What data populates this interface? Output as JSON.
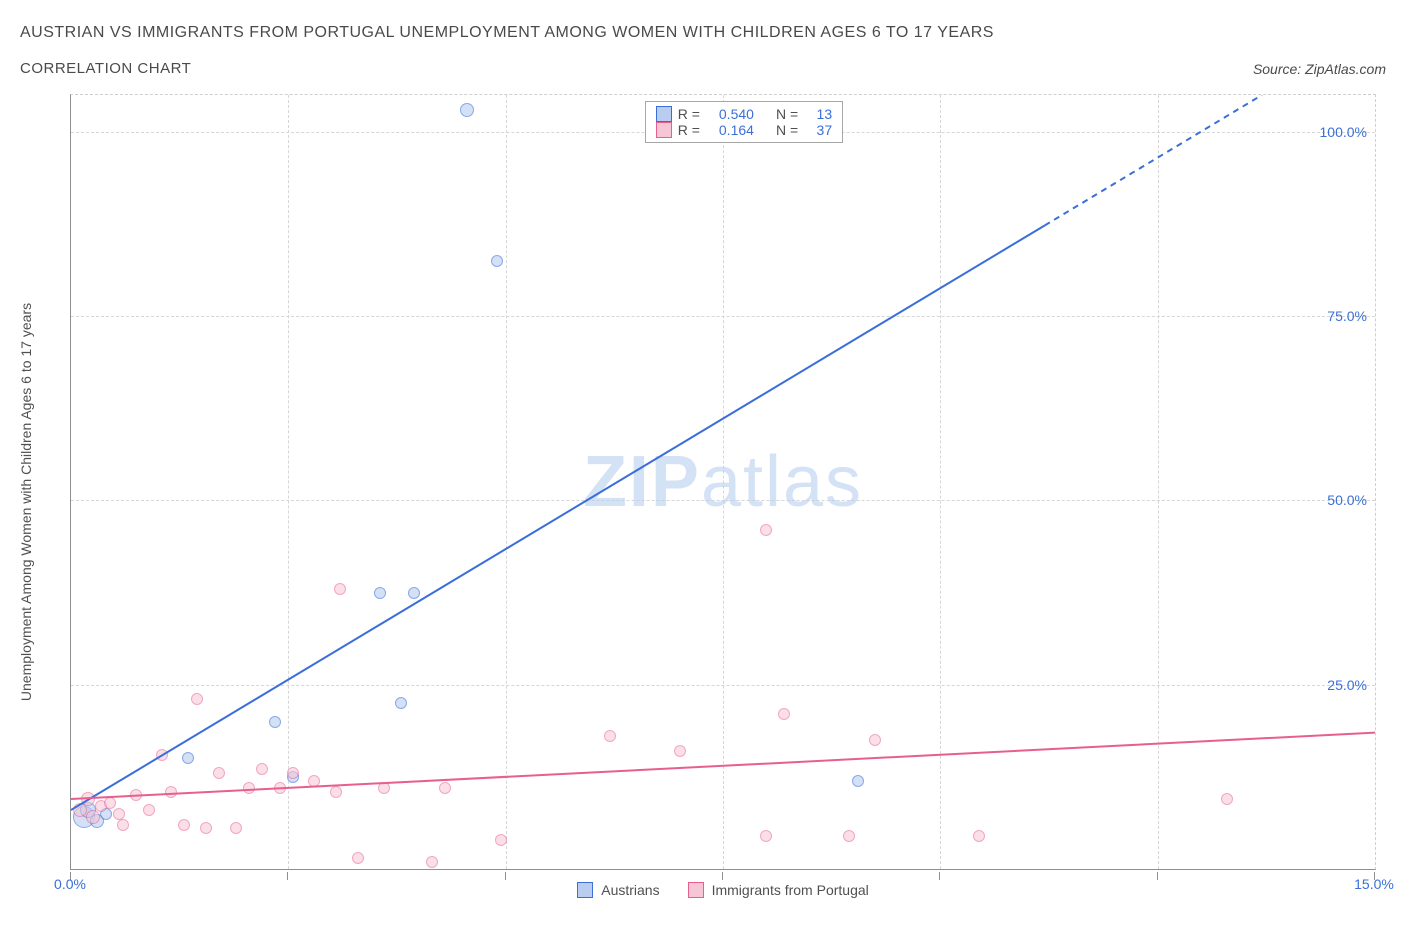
{
  "title": "AUSTRIAN VS IMMIGRANTS FROM PORTUGAL UNEMPLOYMENT AMONG WOMEN WITH CHILDREN AGES 6 TO 17 YEARS",
  "subtitle": "CORRELATION CHART",
  "source": "Source: ZipAtlas.com",
  "watermark_a": "ZIP",
  "watermark_b": "atlas",
  "y_axis_label": "Unemployment Among Women with Children Ages 6 to 17 years",
  "legend_top": {
    "r_label": "R =",
    "n_label": "N =",
    "rows": [
      {
        "swatch_fill": "#b8cdf0",
        "swatch_border": "#3a6fd8",
        "r": "0.540",
        "n": "13"
      },
      {
        "swatch_fill": "#f6c6d6",
        "swatch_border": "#e75f8d",
        "r": "0.164",
        "n": "37"
      }
    ]
  },
  "legend_bottom": [
    {
      "label": "Austrians",
      "fill": "#b8cdf0",
      "border": "#3a6fd8"
    },
    {
      "label": "Immigrants from Portugal",
      "fill": "#f6c6d6",
      "border": "#e75f8d"
    }
  ],
  "chart": {
    "type": "scatter",
    "xlim": [
      0,
      15
    ],
    "ylim": [
      0,
      105
    ],
    "y_ticks": [
      25,
      50,
      75,
      100
    ],
    "y_tick_labels": [
      "25.0%",
      "50.0%",
      "75.0%",
      "100.0%"
    ],
    "x_ticks": [
      0,
      2.5,
      5,
      7.5,
      10,
      12.5,
      15
    ],
    "x_labeled_ticks": [
      0,
      15
    ],
    "x_tick_labels": [
      "0.0%",
      "15.0%"
    ],
    "grid_color": "#d6d6d6",
    "background_color": "#ffffff",
    "series": [
      {
        "name": "Austrians",
        "fill": "#b8cdf0",
        "stroke": "#3a6fd8",
        "opacity": 0.6,
        "stroke_width": 1,
        "points": [
          {
            "x": 0.15,
            "y": 7.0,
            "r": 11
          },
          {
            "x": 0.2,
            "y": 8.0,
            "r": 8
          },
          {
            "x": 0.3,
            "y": 6.5,
            "r": 7
          },
          {
            "x": 0.4,
            "y": 7.5,
            "r": 6
          },
          {
            "x": 1.35,
            "y": 15.0,
            "r": 6
          },
          {
            "x": 2.35,
            "y": 20.0,
            "r": 6
          },
          {
            "x": 2.55,
            "y": 12.5,
            "r": 6
          },
          {
            "x": 3.55,
            "y": 37.5,
            "r": 6
          },
          {
            "x": 3.95,
            "y": 37.5,
            "r": 6
          },
          {
            "x": 3.8,
            "y": 22.5,
            "r": 6
          },
          {
            "x": 4.55,
            "y": 103.0,
            "r": 7
          },
          {
            "x": 4.9,
            "y": 82.5,
            "r": 6
          },
          {
            "x": 9.05,
            "y": 12.0,
            "r": 6
          }
        ],
        "trend": {
          "x1": 0,
          "y1": 8,
          "x2": 13.7,
          "y2": 105,
          "dash_after_x": 11.2,
          "stroke_width": 2
        }
      },
      {
        "name": "Immigrants from Portugal",
        "fill": "#f6c6d6",
        "stroke": "#e75f8d",
        "opacity": 0.55,
        "stroke_width": 1,
        "points": [
          {
            "x": 0.1,
            "y": 8.0,
            "r": 7
          },
          {
            "x": 0.2,
            "y": 9.5,
            "r": 7
          },
          {
            "x": 0.25,
            "y": 7.0,
            "r": 7
          },
          {
            "x": 0.35,
            "y": 8.5,
            "r": 6
          },
          {
            "x": 0.45,
            "y": 9.0,
            "r": 6
          },
          {
            "x": 0.55,
            "y": 7.5,
            "r": 6
          },
          {
            "x": 0.6,
            "y": 6.0,
            "r": 6
          },
          {
            "x": 0.75,
            "y": 10.0,
            "r": 6
          },
          {
            "x": 0.9,
            "y": 8.0,
            "r": 6
          },
          {
            "x": 1.05,
            "y": 15.5,
            "r": 6
          },
          {
            "x": 1.15,
            "y": 10.5,
            "r": 6
          },
          {
            "x": 1.3,
            "y": 6.0,
            "r": 6
          },
          {
            "x": 1.45,
            "y": 23.0,
            "r": 6
          },
          {
            "x": 1.55,
            "y": 5.5,
            "r": 6
          },
          {
            "x": 1.7,
            "y": 13.0,
            "r": 6
          },
          {
            "x": 1.9,
            "y": 5.5,
            "r": 6
          },
          {
            "x": 2.05,
            "y": 11.0,
            "r": 6
          },
          {
            "x": 2.2,
            "y": 13.5,
            "r": 6
          },
          {
            "x": 2.4,
            "y": 11.0,
            "r": 6
          },
          {
            "x": 2.55,
            "y": 13.0,
            "r": 6
          },
          {
            "x": 2.8,
            "y": 12.0,
            "r": 6
          },
          {
            "x": 3.05,
            "y": 10.5,
            "r": 6
          },
          {
            "x": 3.1,
            "y": 38.0,
            "r": 6
          },
          {
            "x": 3.3,
            "y": 1.5,
            "r": 6
          },
          {
            "x": 3.6,
            "y": 11.0,
            "r": 6
          },
          {
            "x": 4.15,
            "y": 1.0,
            "r": 6
          },
          {
            "x": 4.3,
            "y": 11.0,
            "r": 6
          },
          {
            "x": 4.95,
            "y": 4.0,
            "r": 6
          },
          {
            "x": 6.2,
            "y": 18.0,
            "r": 6
          },
          {
            "x": 7.0,
            "y": 16.0,
            "r": 6
          },
          {
            "x": 8.0,
            "y": 46.0,
            "r": 6
          },
          {
            "x": 8.0,
            "y": 4.5,
            "r": 6
          },
          {
            "x": 8.2,
            "y": 21.0,
            "r": 6
          },
          {
            "x": 8.95,
            "y": 4.5,
            "r": 6
          },
          {
            "x": 9.25,
            "y": 17.5,
            "r": 6
          },
          {
            "x": 10.45,
            "y": 4.5,
            "r": 6
          },
          {
            "x": 13.3,
            "y": 9.5,
            "r": 6
          }
        ],
        "trend": {
          "x1": 0,
          "y1": 9.5,
          "x2": 15,
          "y2": 18.5,
          "stroke_width": 2
        }
      }
    ]
  }
}
